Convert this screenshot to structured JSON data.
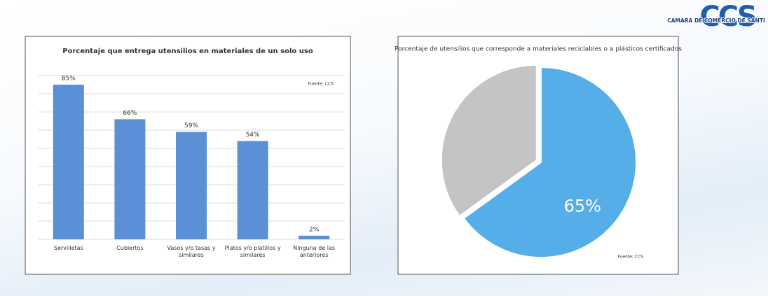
{
  "logo": {
    "text": "CCS",
    "caption": "CAMARA DE COMERCIO DE SANTI"
  },
  "chart_data": [
    {
      "type": "bar",
      "title": "Porcentaje que entrega utensilios en materiales de un solo uso",
      "categories": [
        "Servilletas",
        "Cubiertos",
        "Vasos y/o tasas y similares",
        "Platos y/o platillos y similares",
        "Ninguna de las anteriores"
      ],
      "values": [
        85,
        66,
        59,
        54,
        2
      ],
      "value_labels": [
        "85%",
        "66%",
        "59%",
        "54%",
        "2%"
      ],
      "color": "#5b8fd6",
      "ylim": [
        0,
        90
      ],
      "yticks": [
        0,
        10,
        20,
        30,
        40,
        50,
        60,
        70,
        80,
        90
      ],
      "grid": true,
      "annotation": "Fuente: CCS"
    },
    {
      "type": "pie",
      "title": "Porcentaje de utensilios que corresponde a materiales reciclables o a plásticos certificados",
      "values": [
        65,
        35
      ],
      "value_labels": [
        "65%",
        null
      ],
      "colors": [
        "#56aee8",
        "#c4c4c4"
      ],
      "annotation": "Fuente: CCS"
    }
  ]
}
